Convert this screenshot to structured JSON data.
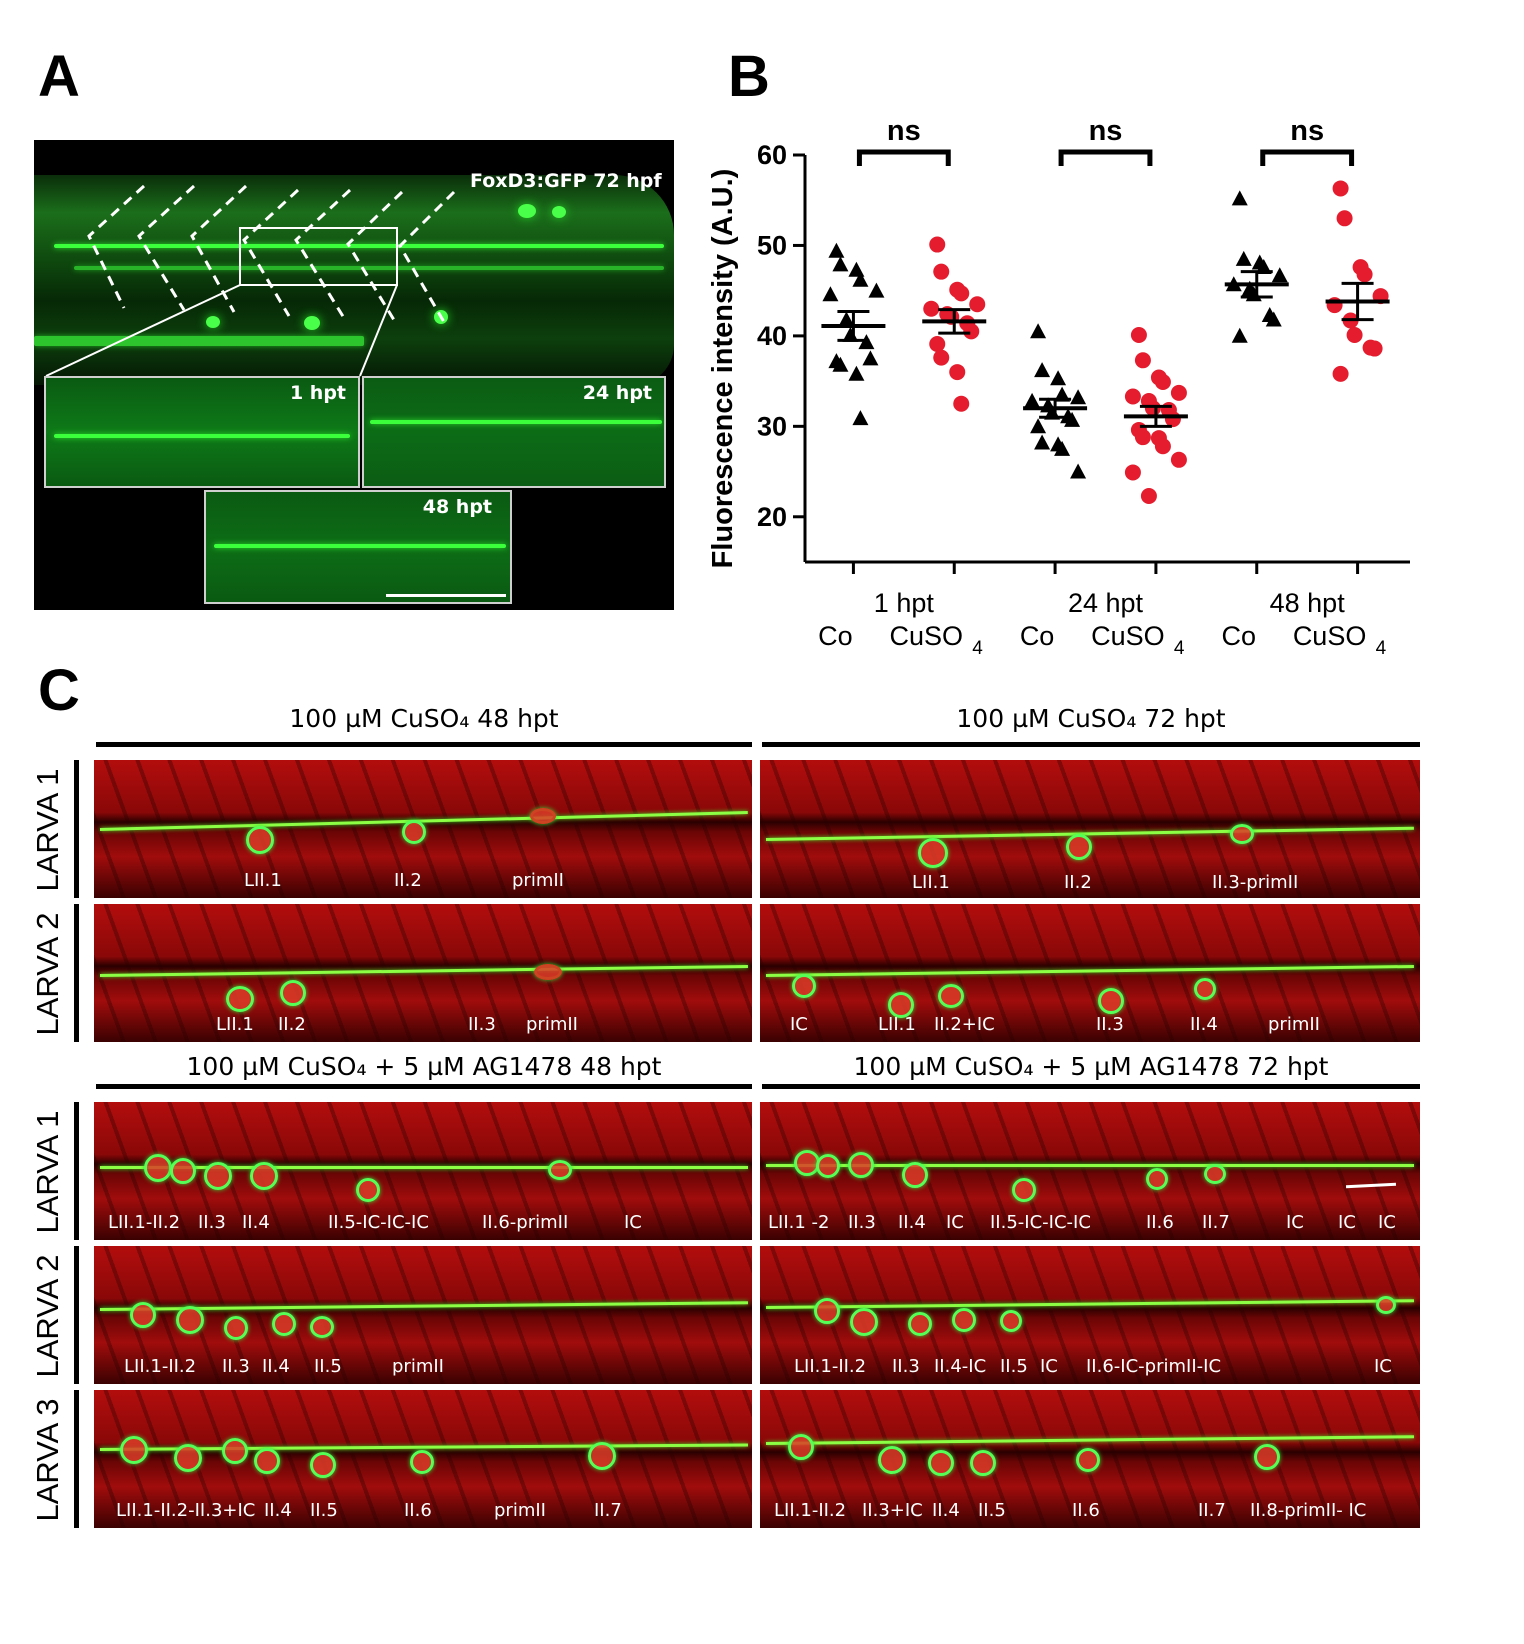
{
  "panel_letters": {
    "a": "A",
    "b": "B",
    "c": "C"
  },
  "panel_a": {
    "main_label": "FoxD3:GFP 72 hpf",
    "insets": [
      "1 hpt",
      "24 hpt",
      "48 hpt"
    ]
  },
  "chart_data": {
    "type": "scatter",
    "ylabel": "Fluorescence intensity (A.U.)",
    "xlabel": "",
    "ylim": [
      15,
      60
    ],
    "yticks": [
      20,
      30,
      40,
      50,
      60
    ],
    "groups": [
      {
        "time": "1 hpt",
        "significance": "ns"
      },
      {
        "time": "24 hpt",
        "significance": "ns"
      },
      {
        "time": "48 hpt",
        "significance": "ns"
      }
    ],
    "subgroup_labels": [
      "Co",
      "CuSO4"
    ],
    "series": [
      {
        "name": "Co",
        "marker": "triangle",
        "color": "#000000",
        "groups": [
          {
            "values": [
              49.3,
              47.8,
              47.2,
              46.1,
              44.9,
              44.5,
              41.7,
              40.0,
              39.2,
              37.4,
              37.1,
              36.7,
              35.7,
              30.8
            ],
            "mean": 41.1,
            "sem": 1.6
          },
          {
            "values": [
              40.4,
              36.1,
              35.2,
              33.4,
              33.1,
              32.7,
              32.2,
              31.4,
              31.0,
              30.6,
              29.9,
              28.1,
              27.9,
              27.4,
              24.9
            ],
            "mean": 32.0,
            "sem": 1.0
          },
          {
            "values": [
              55.1,
              48.4,
              48.0,
              47.5,
              46.6,
              45.6,
              45.1,
              44.5,
              42.2,
              41.7,
              39.9
            ],
            "mean": 45.7,
            "sem": 1.4
          }
        ]
      },
      {
        "name": "CuSO4",
        "marker": "circle",
        "color": "#e41c2d",
        "groups": [
          {
            "values": [
              50.1,
              47.1,
              45.1,
              44.7,
              43.5,
              43.0,
              42.4,
              42.1,
              41.4,
              40.5,
              39.1,
              37.6,
              36.0,
              32.5
            ],
            "mean": 41.6,
            "sem": 1.3
          },
          {
            "values": [
              40.1,
              37.3,
              35.4,
              34.9,
              33.7,
              33.3,
              32.8,
              32.0,
              31.8,
              30.8,
              29.6,
              28.8,
              28.7,
              27.8,
              26.3,
              24.9,
              22.3
            ],
            "mean": 31.1,
            "sem": 1.1
          },
          {
            "values": [
              56.3,
              53.0,
              47.6,
              46.8,
              44.4,
              43.4,
              41.7,
              40.1,
              38.7,
              38.6,
              35.8
            ],
            "mean": 43.8,
            "sem": 2.0
          }
        ]
      }
    ]
  },
  "panel_c": {
    "titles": {
      "top_left": "100 µM CuSO₄ 48 hpt",
      "top_right": "100 µM CuSO₄ 72 hpt",
      "bottom_left": "100 µM CuSO₄ + 5 µM AG1478  48 hpt",
      "bottom_right": "100 µM CuSO₄ + 5 µM AG1478  72 hpt"
    },
    "row_labels": [
      "LARVA 1",
      "LARVA 2",
      "LARVA 1",
      "LARVA 2",
      "LARVA 3"
    ],
    "panels": {
      "r1_left": [
        "LII.1",
        "II.2",
        "primII"
      ],
      "r1_right": [
        "LII.1",
        "II.2",
        "II.3-primII"
      ],
      "r2_left": [
        "LII.1",
        "II.2",
        "II.3",
        "primII"
      ],
      "r2_right": [
        "IC",
        "LII.1",
        "II.2+IC",
        "II.3",
        "II.4",
        "primII"
      ],
      "r3_left": [
        "LII.1-II.2",
        "II.3",
        "II.4",
        "II.5-IC-IC-IC",
        "II.6-primII",
        "IC"
      ],
      "r3_right": [
        "LII.1 -2",
        "II.3",
        "II.4",
        "IC",
        "II.5-IC-IC-IC",
        "II.6",
        "II.7",
        "IC",
        "IC",
        "IC"
      ],
      "r4_left": [
        "LII.1-II.2",
        "II.3",
        "II.4",
        "II.5",
        "primII"
      ],
      "r4_right": [
        "LII.1-II.2",
        "II.3",
        "II.4-IC",
        "II.5",
        "IC",
        "II.6-IC-primII-IC",
        "IC"
      ],
      "r5_left": [
        "LII.1-II.2-II.3+IC",
        "II.4",
        "II.5",
        "II.6",
        "primII",
        "II.7"
      ],
      "r5_right": [
        "LII.1-II.2",
        "II.3+IC",
        "II.4",
        "II.5",
        "II.6",
        "II.7",
        "II.8-primII- IC"
      ]
    }
  }
}
